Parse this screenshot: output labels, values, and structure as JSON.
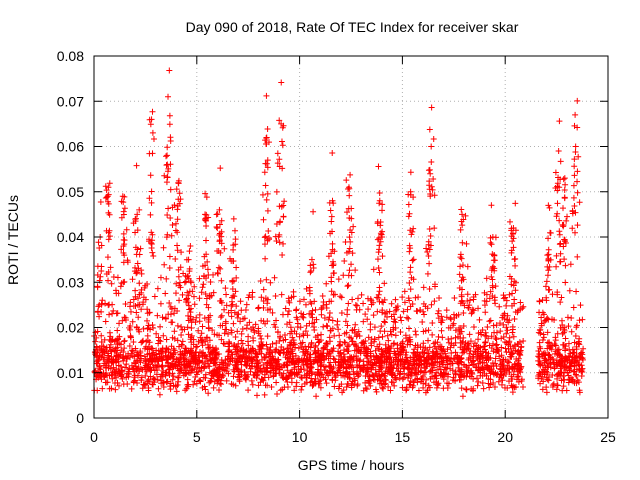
{
  "chart_data": {
    "type": "scatter",
    "title": "Day 090 of 2018, Rate Of TEC Index for receiver skar",
    "xlabel": "GPS time / hours",
    "ylabel": "ROTI / TECUs",
    "xlim": [
      0,
      25
    ],
    "ylim": [
      0,
      0.08
    ],
    "xticks": [
      "0",
      "5",
      "10",
      "15",
      "20",
      "25"
    ],
    "yticks": [
      "0",
      "0.01",
      "0.02",
      "0.03",
      "0.04",
      "0.05",
      "0.06",
      "0.07",
      "0.08"
    ],
    "grid": true,
    "marker": "+",
    "color": "#ff0000",
    "series": [
      {
        "name": "ROTI",
        "segments": [
          [
            0.0,
            20.9
          ],
          [
            21.6,
            23.8
          ]
        ],
        "baseline": 0.012,
        "peaks": [
          {
            "x": 0.3,
            "y": 0.04
          },
          {
            "x": 0.7,
            "y": 0.051
          },
          {
            "x": 1.4,
            "y": 0.049
          },
          {
            "x": 2.1,
            "y": 0.045
          },
          {
            "x": 2.8,
            "y": 0.066
          },
          {
            "x": 3.6,
            "y": 0.071
          },
          {
            "x": 4.1,
            "y": 0.052
          },
          {
            "x": 4.6,
            "y": 0.035
          },
          {
            "x": 5.4,
            "y": 0.045
          },
          {
            "x": 6.1,
            "y": 0.046
          },
          {
            "x": 6.8,
            "y": 0.044
          },
          {
            "x": 8.4,
            "y": 0.062
          },
          {
            "x": 9.1,
            "y": 0.065
          },
          {
            "x": 10.6,
            "y": 0.035
          },
          {
            "x": 11.6,
            "y": 0.048
          },
          {
            "x": 12.4,
            "y": 0.051
          },
          {
            "x": 13.9,
            "y": 0.048
          },
          {
            "x": 15.4,
            "y": 0.05
          },
          {
            "x": 16.4,
            "y": 0.06
          },
          {
            "x": 17.9,
            "y": 0.045
          },
          {
            "x": 19.4,
            "y": 0.04
          },
          {
            "x": 20.4,
            "y": 0.042
          },
          {
            "x": 22.1,
            "y": 0.047
          },
          {
            "x": 22.6,
            "y": 0.059
          },
          {
            "x": 22.9,
            "y": 0.053
          },
          {
            "x": 23.4,
            "y": 0.067
          }
        ],
        "sample_count": 3200
      }
    ]
  }
}
